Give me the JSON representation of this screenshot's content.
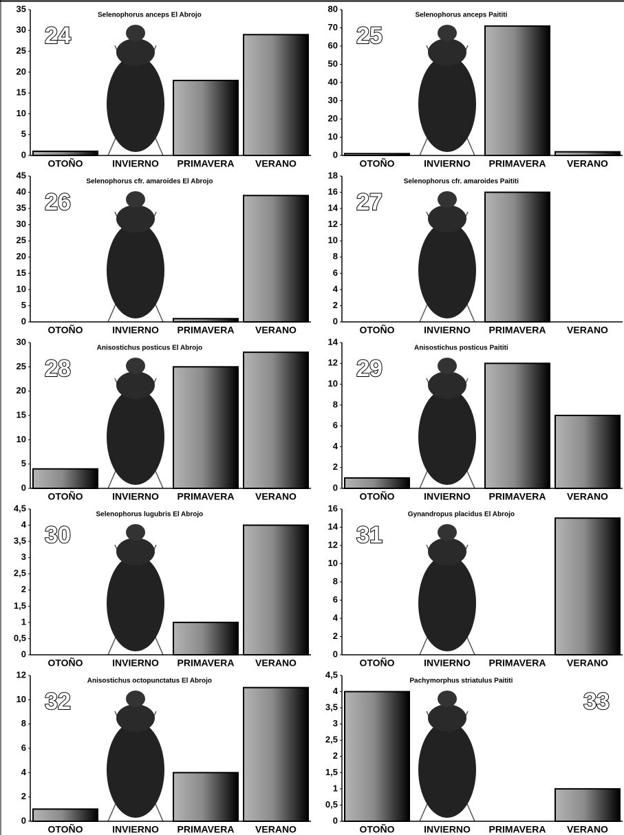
{
  "chart_data": [
    {
      "type": "bar",
      "label": "24",
      "label_corner": "left",
      "title": "Selenophorus anceps El Abrojo",
      "categories": [
        "OTOÑO",
        "INVIERNO",
        "PRIMAVERA",
        "VERANO"
      ],
      "values": [
        1,
        0,
        18,
        29
      ],
      "ylim": [
        0,
        35
      ],
      "yticks": [
        0,
        5,
        10,
        15,
        20,
        25,
        30,
        35
      ]
    },
    {
      "type": "bar",
      "label": "25",
      "label_corner": "left",
      "title": "Selenophorus anceps Paititi",
      "categories": [
        "OTOÑO",
        "INVIERNO",
        "PRIMAVERA",
        "VERANO"
      ],
      "values": [
        1,
        0,
        71,
        2
      ],
      "ylim": [
        0,
        80
      ],
      "yticks": [
        0,
        10,
        20,
        30,
        40,
        50,
        60,
        70,
        80
      ]
    },
    {
      "type": "bar",
      "label": "26",
      "label_corner": "left",
      "title": "Selenophorus cfr. amaroides El Abrojo",
      "categories": [
        "OTOÑO",
        "INVIERNO",
        "PRIMAVERA",
        "VERANO"
      ],
      "values": [
        0,
        0,
        1,
        39
      ],
      "ylim": [
        0,
        45
      ],
      "yticks": [
        0,
        5,
        10,
        15,
        20,
        25,
        30,
        35,
        40,
        45
      ]
    },
    {
      "type": "bar",
      "label": "27",
      "label_corner": "left",
      "title": "Selenophorus cfr. amaroides Paititi",
      "categories": [
        "OTOÑO",
        "INVIERNO",
        "PRIMAVERA",
        "VERANO"
      ],
      "values": [
        0,
        0,
        16,
        0
      ],
      "ylim": [
        0,
        18
      ],
      "yticks": [
        0,
        2,
        4,
        6,
        8,
        10,
        12,
        14,
        16,
        18
      ]
    },
    {
      "type": "bar",
      "label": "28",
      "label_corner": "left",
      "title": "Anisostichus posticus El Abrojo",
      "categories": [
        "OTOÑO",
        "INVIERNO",
        "PRIMAVERA",
        "VERANO"
      ],
      "values": [
        4,
        0,
        25,
        28
      ],
      "ylim": [
        0,
        30
      ],
      "yticks": [
        0,
        5,
        10,
        15,
        20,
        25,
        30
      ]
    },
    {
      "type": "bar",
      "label": "29",
      "label_corner": "left",
      "title": "Anisostichus posticus Paititi",
      "categories": [
        "OTOÑO",
        "INVIERNO",
        "PRIMAVERA",
        "VERANO"
      ],
      "values": [
        1,
        0,
        12,
        7
      ],
      "ylim": [
        0,
        14
      ],
      "yticks": [
        0,
        2,
        4,
        6,
        8,
        10,
        12,
        14
      ]
    },
    {
      "type": "bar",
      "label": "30",
      "label_corner": "left",
      "title": "Selenophorus lugubris El Abrojo",
      "categories": [
        "OTOÑO",
        "INVIERNO",
        "PRIMAVERA",
        "VERANO"
      ],
      "values": [
        0,
        0,
        1,
        4
      ],
      "ylim": [
        0,
        4.5
      ],
      "yticks": [
        0,
        {
          "value": 0.5,
          "label": "0,5"
        },
        1,
        {
          "value": 1.5,
          "label": "1,5"
        },
        2,
        {
          "value": 2.5,
          "label": "2,5"
        },
        3,
        {
          "value": 3.5,
          "label": "3,5"
        },
        4,
        {
          "value": 4.5,
          "label": "4,5"
        }
      ]
    },
    {
      "type": "bar",
      "label": "31",
      "label_corner": "left",
      "title": "Gynandropus placidus El Abrojo",
      "categories": [
        "OTOÑO",
        "INVIERNO",
        "PRIMAVERA",
        "VERANO"
      ],
      "values": [
        0,
        0,
        0,
        15
      ],
      "ylim": [
        0,
        16
      ],
      "yticks": [
        0,
        2,
        4,
        6,
        8,
        10,
        12,
        14,
        16
      ]
    },
    {
      "type": "bar",
      "label": "32",
      "label_corner": "left",
      "title": "Anisostichus octopunctatus El Abrojo",
      "categories": [
        "OTOÑO",
        "INVIERNO",
        "PRIMAVERA",
        "VERANO"
      ],
      "values": [
        1,
        0,
        4,
        11
      ],
      "ylim": [
        0,
        12
      ],
      "yticks": [
        0,
        2,
        4,
        6,
        8,
        10,
        12
      ]
    },
    {
      "type": "bar",
      "label": "33",
      "label_corner": "right",
      "title": "Pachymorphus striatulus Paititi",
      "categories": [
        "OTOÑO",
        "INVIERNO",
        "PRIMAVERA",
        "VERANO"
      ],
      "values": [
        4,
        0,
        0,
        1
      ],
      "ylim": [
        0,
        4.5
      ],
      "yticks": [
        0,
        {
          "value": 0.5,
          "label": "0,5"
        },
        1,
        {
          "value": 1.5,
          "label": "1,5"
        },
        2,
        {
          "value": 2.5,
          "label": "2,5"
        },
        3,
        {
          "value": 3.5,
          "label": "3,5"
        },
        4,
        {
          "value": 4.5,
          "label": "4,5"
        }
      ]
    }
  ]
}
